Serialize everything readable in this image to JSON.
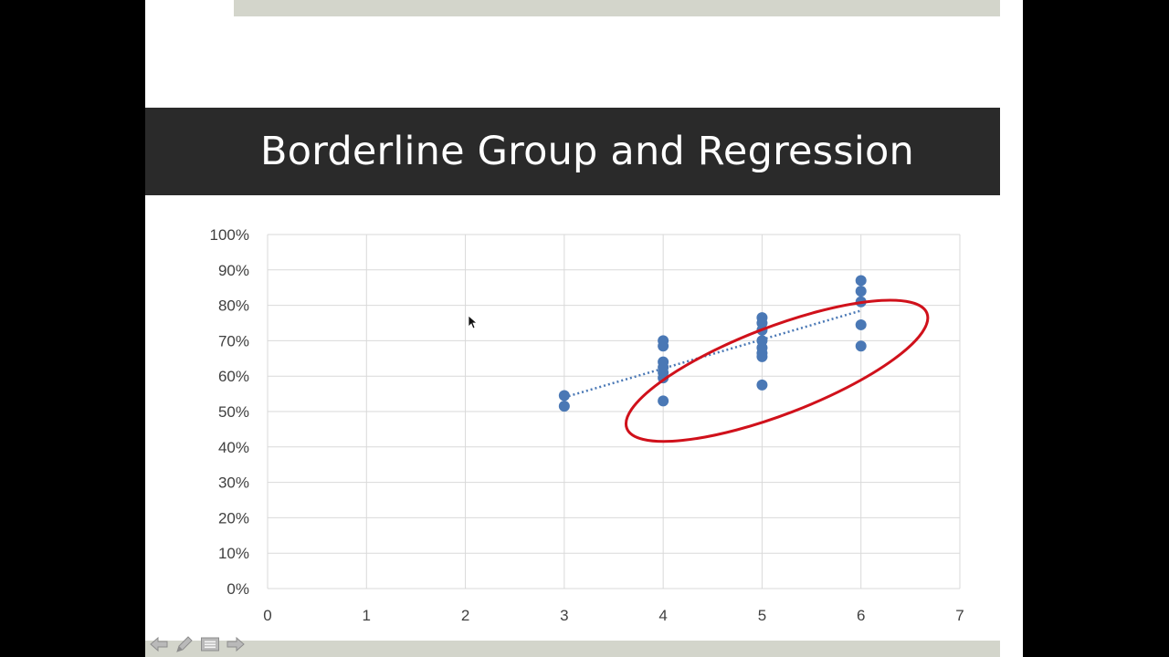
{
  "slide": {
    "title": "Borderline Group and Regression"
  },
  "nav": {
    "icons": [
      "arrow-left-icon",
      "pen-icon",
      "menu-icon",
      "arrow-right-icon"
    ]
  },
  "colors": {
    "title_band": "#2a2a2a",
    "accent_bar": "#d3d5cb",
    "points": "#4a78b5",
    "ellipse": "#d0111b"
  },
  "chart_data": {
    "type": "scatter",
    "title": "",
    "xlabel": "",
    "ylabel": "",
    "xlim": [
      0,
      7
    ],
    "ylim": [
      0,
      1
    ],
    "x_ticks": [
      "0",
      "1",
      "2",
      "3",
      "4",
      "5",
      "6",
      "7"
    ],
    "y_ticks": [
      "0%",
      "10%",
      "20%",
      "30%",
      "40%",
      "50%",
      "60%",
      "70%",
      "80%",
      "90%",
      "100%"
    ],
    "grid": true,
    "series": [
      {
        "points": [
          [
            3,
            0.545
          ],
          [
            3,
            0.515
          ],
          [
            4,
            0.7
          ],
          [
            4,
            0.685
          ],
          [
            4,
            0.64
          ],
          [
            4,
            0.625
          ],
          [
            4,
            0.61
          ],
          [
            4,
            0.595
          ],
          [
            4,
            0.53
          ],
          [
            5,
            0.765
          ],
          [
            5,
            0.75
          ],
          [
            5,
            0.73
          ],
          [
            5,
            0.7
          ],
          [
            5,
            0.68
          ],
          [
            5,
            0.665
          ],
          [
            5,
            0.655
          ],
          [
            5,
            0.575
          ],
          [
            6,
            0.87
          ],
          [
            6,
            0.84
          ],
          [
            6,
            0.81
          ],
          [
            6,
            0.745
          ],
          [
            6,
            0.685
          ]
        ]
      }
    ],
    "trendline": {
      "style": "dotted",
      "from": [
        3,
        0.54
      ],
      "to": [
        6,
        0.785
      ]
    },
    "annotation": {
      "shape": "ellipse",
      "color": "#d0111b",
      "center": [
        5.15,
        0.615
      ],
      "note": "highlights borderline group"
    }
  }
}
